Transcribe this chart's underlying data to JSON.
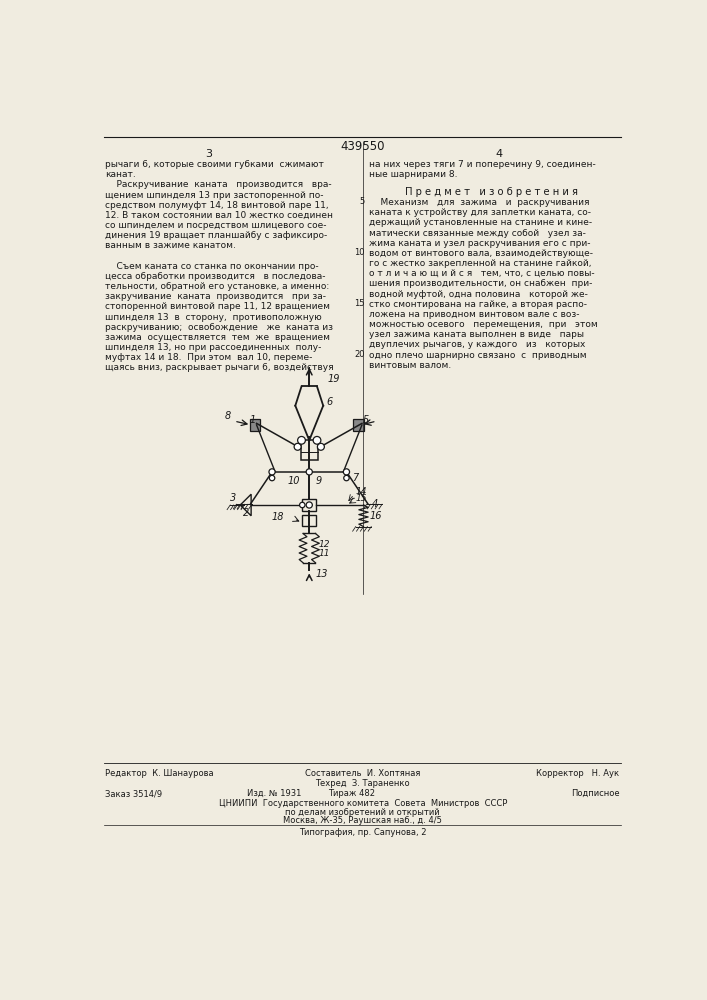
{
  "patent_number": "439550",
  "page_left": "3",
  "page_right": "4",
  "bg_color": "#f0ece0",
  "text_color": "#1a1a1a",
  "left_text": [
    "рычаги 6, которые своими губками  сжимают",
    "канат.",
    "    Раскручивание  каната   производится   вра-",
    "щением шпинделя 13 при застопоренной по-",
    "средством полумуфт 14, 18 винтовой паре 11,",
    "12. В таком состоянии вал 10 жестко соединен",
    "со шпинделем и посредством шлицевого сое-",
    "динения 19 вращает планшайбу с зафиксиро-",
    "ванным в зажиме канатом.",
    "",
    "    Съем каната со станка по окончании про-",
    "цесса обработки производится   в последова-",
    "тельности, обратной его установке, а именно:",
    "закручивание  каната  производится   при за-",
    "стопоренной винтовой паре 11, 12 вращением",
    "шпинделя 13  в  сторону,  противоположную",
    "раскручиванию;  освобождение   же  каната из",
    "зажима  осуществляется  тем  же  вращением",
    "шпинделя 13, но при рассоединенных  полу-",
    "муфтах 14 и 18.  При этом  вал 10, переме-",
    "щаясь вниз, раскрывает рычаги 6, воздействуя"
  ],
  "right_text_intro": [
    "на них через тяги 7 и поперечину 9, соединен-",
    "ные шарнирами 8."
  ],
  "predmet_title": "П р е д м е т   и з о б р е т е н и я",
  "right_text_body": [
    "    Механизм   для  зажима   и  раскручивания",
    "каната к устройству для заплетки каната, со-",
    "держащий установленные на станине и кине-",
    "матически связанные между собой   узел за-",
    "жима каната и узел раскручивания его с при-",
    "водом от винтового вала, взаимодействующе-",
    "го с жестко закрепленной на станине гайкой,",
    "о т л и ч а ю щ и й с я   тем, что, с целью повы-",
    "шения производительности, он снабжен  при-",
    "водной муфтой, одна половина   которой же-",
    "стко смонтирована на гайке, а вторая распо-",
    "ложена на приводном винтовом вале с воз-",
    "можностью осевого   перемещения,  при   этом",
    "узел зажима каната выполнен в виде   пары",
    "двуплечих рычагов, у каждого   из   которых",
    "одно плечо шарнирно связано  с  приводным",
    "винтовым валом."
  ],
  "techred": "Техред  З. Тараненко",
  "editor": "Редактор  К. Шанаурова",
  "compiler": "Составитель  И. Хоптяная",
  "corrector": "Корректор   Н. Аук",
  "order": "Заказ 3514/9",
  "izdanie": "Изд. № 1931",
  "tirazh": "Тираж 482",
  "podpisnoe": "Подписное",
  "cniip1": "ЦНИИПИ  Государственного комитета  Совета  Министров  СССР",
  "cniip2": "по делам изобретений и открытий",
  "cniip3": "Москва, Ж-35, Раушская наб., д. 4/5",
  "tipografia": "Типография, пр. Сапунова, 2"
}
